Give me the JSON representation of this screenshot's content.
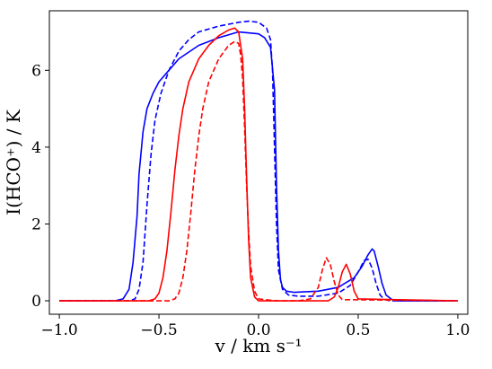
{
  "chart_data": {
    "type": "line",
    "xlabel": "v / km s⁻¹",
    "ylabel": "I(HCO⁺) / K",
    "xlim": [
      -1.05,
      1.05
    ],
    "ylim": [
      -0.35,
      7.55
    ],
    "xticks": [
      -1.0,
      -0.5,
      0.0,
      0.5,
      1.0
    ],
    "xtick_labels": [
      "−1.0",
      "−0.5",
      "0.0",
      "0.5",
      "1.0"
    ],
    "yticks": [
      0,
      2,
      4,
      6
    ],
    "ytick_labels": [
      "0",
      "2",
      "4",
      "6"
    ],
    "grid": false,
    "series": [
      {
        "color": "#0000ff",
        "dash": "solid",
        "x": [
          -1.0,
          -0.72,
          -0.68,
          -0.65,
          -0.63,
          -0.61,
          -0.6,
          -0.58,
          -0.56,
          -0.53,
          -0.5,
          -0.45,
          -0.4,
          -0.3,
          -0.2,
          -0.1,
          0.0,
          0.03,
          0.06,
          0.08,
          0.09,
          0.1,
          0.11,
          0.12,
          0.14,
          0.18,
          0.3,
          0.4,
          0.48,
          0.52,
          0.55,
          0.57,
          0.58,
          0.6,
          0.62,
          0.64,
          0.67,
          0.7,
          1.0
        ],
        "y": [
          0,
          0.0,
          0.05,
          0.3,
          1.0,
          2.2,
          3.3,
          4.4,
          5.0,
          5.4,
          5.7,
          6.0,
          6.3,
          6.65,
          6.85,
          7.0,
          6.95,
          6.85,
          6.6,
          5.5,
          3.0,
          1.3,
          0.55,
          0.35,
          0.25,
          0.22,
          0.25,
          0.35,
          0.6,
          0.9,
          1.2,
          1.35,
          1.3,
          0.9,
          0.45,
          0.15,
          0.03,
          0.0,
          0
        ]
      },
      {
        "color": "#0000ff",
        "dash": "dashed",
        "x": [
          -1.0,
          -0.65,
          -0.62,
          -0.6,
          -0.58,
          -0.56,
          -0.54,
          -0.52,
          -0.49,
          -0.45,
          -0.4,
          -0.35,
          -0.3,
          -0.2,
          -0.1,
          -0.05,
          0.0,
          0.04,
          0.06,
          0.07,
          0.08,
          0.09,
          0.1,
          0.12,
          0.15,
          0.2,
          0.3,
          0.4,
          0.46,
          0.5,
          0.53,
          0.55,
          0.57,
          0.59,
          0.61,
          0.63,
          0.66,
          1.0
        ],
        "y": [
          0,
          0.0,
          0.05,
          0.3,
          1.0,
          2.5,
          3.8,
          4.7,
          5.4,
          6.0,
          6.5,
          6.8,
          7.0,
          7.15,
          7.25,
          7.28,
          7.25,
          7.1,
          6.8,
          6.0,
          4.0,
          2.0,
          0.8,
          0.3,
          0.15,
          0.12,
          0.12,
          0.2,
          0.4,
          0.75,
          1.05,
          1.08,
          0.85,
          0.45,
          0.15,
          0.04,
          0.0,
          0
        ]
      },
      {
        "color": "#ff0000",
        "dash": "solid",
        "x": [
          -1.0,
          -0.55,
          -0.52,
          -0.5,
          -0.48,
          -0.46,
          -0.44,
          -0.42,
          -0.4,
          -0.38,
          -0.35,
          -0.3,
          -0.25,
          -0.2,
          -0.15,
          -0.12,
          -0.1,
          -0.08,
          -0.07,
          -0.06,
          -0.05,
          -0.04,
          -0.02,
          0.0,
          0.05,
          0.1,
          0.35,
          0.38,
          0.4,
          0.42,
          0.44,
          0.46,
          0.48,
          0.5,
          1.0
        ],
        "y": [
          0,
          0.0,
          0.05,
          0.2,
          0.6,
          1.3,
          2.3,
          3.4,
          4.3,
          5.0,
          5.7,
          6.3,
          6.65,
          6.9,
          7.05,
          7.1,
          7.0,
          6.3,
          5.0,
          3.2,
          1.6,
          0.6,
          0.1,
          0.0,
          0.0,
          0.0,
          0.0,
          0.1,
          0.35,
          0.75,
          0.95,
          0.7,
          0.25,
          0.05,
          0
        ]
      },
      {
        "color": "#ff0000",
        "dash": "dashed",
        "x": [
          -1.0,
          -0.45,
          -0.42,
          -0.4,
          -0.38,
          -0.36,
          -0.34,
          -0.32,
          -0.3,
          -0.28,
          -0.25,
          -0.2,
          -0.15,
          -0.12,
          -0.1,
          -0.09,
          -0.08,
          -0.07,
          -0.06,
          -0.05,
          -0.04,
          -0.02,
          0.0,
          0.05,
          0.1,
          0.2,
          0.26,
          0.3,
          0.32,
          0.34,
          0.36,
          0.38,
          0.4,
          0.42,
          1.0
        ],
        "y": [
          0,
          0.0,
          0.05,
          0.2,
          0.6,
          1.3,
          2.3,
          3.4,
          4.3,
          5.0,
          5.7,
          6.3,
          6.65,
          6.75,
          6.7,
          6.4,
          5.8,
          4.5,
          3.0,
          1.8,
          0.9,
          0.25,
          0.05,
          0.02,
          0.0,
          0.0,
          0.05,
          0.35,
          0.8,
          1.12,
          0.95,
          0.5,
          0.15,
          0.03,
          0
        ]
      }
    ]
  }
}
